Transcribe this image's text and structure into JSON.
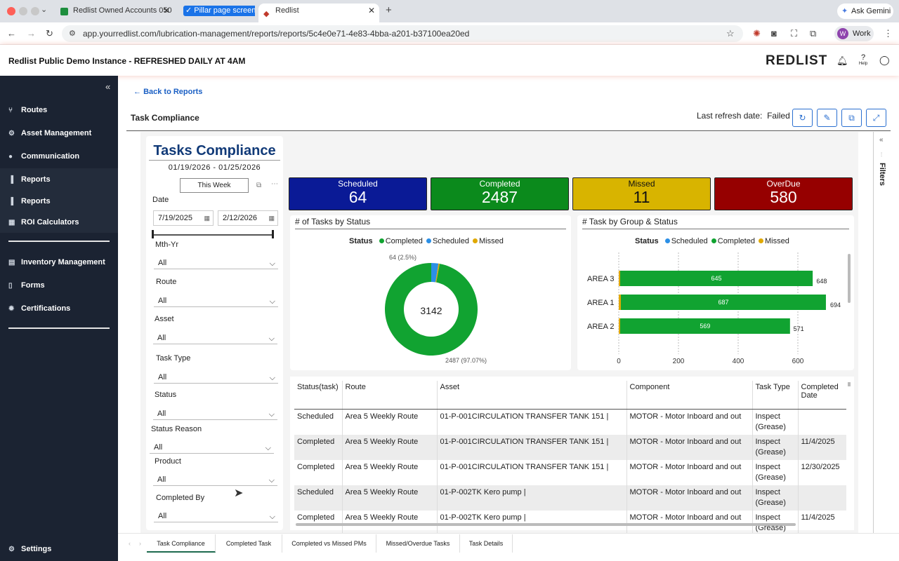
{
  "browser": {
    "tabs": [
      {
        "label": "Redlist Owned Accounts 050"
      },
      {
        "label": "Pillar page screen"
      },
      {
        "label": "Redlist"
      }
    ],
    "url": "app.yourredlist.com/lubrication-management/reports/reports/5c4e0e71-4e83-4bba-a201-b37100ea20ed",
    "ask_gemini": "Ask Gemini",
    "profile": "Work",
    "profile_initial": "W"
  },
  "app": {
    "title": "Redlist Public Demo Instance - REFRESHED DAILY AT 4AM",
    "logo": "REDLIST",
    "help_label": "Help"
  },
  "sidebar": {
    "items": [
      {
        "label": "Routes",
        "icon": "routes-icon"
      },
      {
        "label": "Asset Management",
        "icon": "assets-icon"
      },
      {
        "label": "Communication",
        "icon": "chat-icon"
      },
      {
        "label": "Reports",
        "icon": "chart-icon"
      },
      {
        "label": "Reports",
        "icon": "chart-icon"
      },
      {
        "label": "ROI Calculators",
        "icon": "calculator-icon"
      },
      {
        "label": "Inventory Management",
        "icon": "inventory-icon"
      },
      {
        "label": "Forms",
        "icon": "forms-icon"
      },
      {
        "label": "Certifications",
        "icon": "certificate-icon"
      }
    ],
    "settings": "Settings"
  },
  "main": {
    "back": "Back to Reports",
    "title": "Task Compliance",
    "last_refresh_label": "Last refresh date:",
    "last_refresh_value": "Failed"
  },
  "filters": {
    "title": "Tasks Compliance",
    "range": "01/19/2026 - 01/25/2026",
    "this_week": "This Week",
    "date_label": "Date",
    "date_from": "7/19/2025",
    "date_to": "2/12/2026",
    "fields": [
      {
        "label": "Mth-Yr",
        "value": "All"
      },
      {
        "label": "Route",
        "value": "All"
      },
      {
        "label": "Asset",
        "value": "All"
      },
      {
        "label": "Task Type",
        "value": "All"
      },
      {
        "label": "Status",
        "value": "All"
      },
      {
        "label": "Status Reason",
        "value": "All"
      },
      {
        "label": "Product",
        "value": "All"
      },
      {
        "label": "Completed By",
        "value": "All"
      }
    ],
    "side_label": "Filters"
  },
  "cards": [
    {
      "label": "Scheduled",
      "value": "64",
      "color": "#0a1a96"
    },
    {
      "label": "Completed",
      "value": "2487",
      "color": "#0b8a1c"
    },
    {
      "label": "Missed",
      "value": "11",
      "color": "#d8b400"
    },
    {
      "label": "OverDue",
      "value": "580",
      "color": "#960000"
    }
  ],
  "donut": {
    "title": "# of Tasks by Status",
    "legend_title": "Status",
    "legend": [
      {
        "name": "Completed",
        "color": "#11a331"
      },
      {
        "name": "Scheduled",
        "color": "#2b8fe6"
      },
      {
        "name": "Missed",
        "color": "#e0a800"
      }
    ],
    "center": "3142",
    "label_top": "64 (2.5%)",
    "label_bottom": "2487 (97.07%)"
  },
  "bar": {
    "title": "# Task by Group & Status",
    "legend_title": "Status",
    "legend": [
      {
        "name": "Scheduled",
        "color": "#2b8fe6"
      },
      {
        "name": "Completed",
        "color": "#11a331"
      },
      {
        "name": "Missed",
        "color": "#e0a800"
      }
    ]
  },
  "chart_data": [
    {
      "type": "pie",
      "title": "# of Tasks by Status",
      "categories": [
        "Completed",
        "Scheduled",
        "Missed"
      ],
      "values": [
        2487,
        64,
        11
      ],
      "total": 3142,
      "legend": "top"
    },
    {
      "type": "bar",
      "orientation": "horizontal",
      "title": "# Task by Group & Status",
      "categories": [
        "AREA 3",
        "AREA 1",
        "AREA 2"
      ],
      "series": [
        {
          "name": "Completed",
          "values": [
            645,
            687,
            569
          ]
        },
        {
          "name": "Missed",
          "values": [
            3,
            7,
            2
          ]
        }
      ],
      "totals": [
        648,
        694,
        571
      ],
      "xlim": [
        0,
        700
      ],
      "xticks": [
        0,
        200,
        400,
        600
      ],
      "grid": true,
      "legend": "top"
    }
  ],
  "table": {
    "headers": [
      "Status(task)",
      "Route",
      "Asset",
      "Component",
      "Task Type",
      "Completed Date"
    ],
    "rows": [
      [
        "Scheduled",
        "Area 5 Weekly Route",
        "01-P-001CIRCULATION TRANSFER TANK 151 |",
        "MOTOR - Motor Inboard and out",
        "Inspect (Grease)",
        ""
      ],
      [
        "Completed",
        "Area 5 Weekly Route",
        "01-P-001CIRCULATION TRANSFER TANK 151 |",
        "MOTOR - Motor Inboard and out",
        "Inspect (Grease)",
        "11/4/2025"
      ],
      [
        "Completed",
        "Area 5 Weekly Route",
        "01-P-001CIRCULATION TRANSFER TANK 151 |",
        "MOTOR - Motor Inboard and out",
        "Inspect (Grease)",
        "12/30/2025"
      ],
      [
        "Scheduled",
        "Area 5 Weekly Route",
        "01-P-002TK Kero pump |",
        "MOTOR - Motor Inboard and out",
        "Inspect (Grease)",
        ""
      ],
      [
        "Completed",
        "Area 5 Weekly Route",
        "01-P-002TK Kero pump |",
        "MOTOR - Motor Inboard and out",
        "Inspect (Grease)",
        "11/4/2025"
      ]
    ]
  },
  "report_tabs": [
    "Task Compliance",
    "Completed Task",
    "Completed vs Missed PMs",
    "Missed/Overdue Tasks",
    "Task Details"
  ]
}
